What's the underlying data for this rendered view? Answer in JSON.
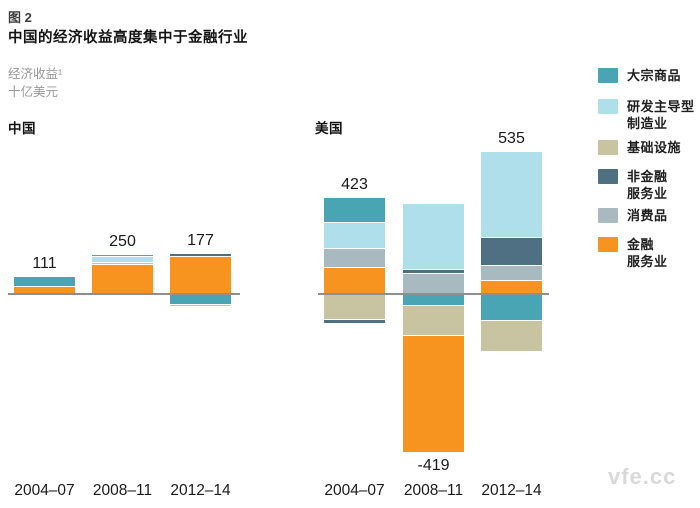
{
  "header": {
    "figure_label": "图 2",
    "title": "中国的经济收益高度集中于金融行业",
    "unit_line1": "经济收益¹",
    "unit_line2": "十亿美元"
  },
  "watermark": "vfe.cc",
  "colors": {
    "commodities": "#49a5b4",
    "rd_manufacturing": "#b0dfec",
    "infrastructure": "#c8c4a2",
    "nonfinancial_services": "#4e7082",
    "consumer_goods": "#a8b9c0",
    "financial_services": "#f79420",
    "axis_line": "#8f8f8f",
    "subtitle_gray": "#9a9a9a"
  },
  "legend": {
    "items": [
      {
        "key": "commodities-swatch",
        "label": "大宗商品",
        "color": "#49a5b4"
      },
      {
        "key": "rd-manufacturing-swatch",
        "label": "研发主导型\n制造业",
        "color": "#b0dfec"
      },
      {
        "key": "infrastructure-swatch",
        "label": "基础设施",
        "color": "#c8c4a2"
      },
      {
        "key": "nonfinancial-services-swatch",
        "label": "非金融\n服务业",
        "color": "#4e7082"
      },
      {
        "key": "consumer-goods-swatch",
        "label": "消费品",
        "color": "#a8b9c0"
      },
      {
        "key": "financial-services-swatch",
        "label": "金融\n服务业",
        "color": "#f79420"
      }
    ]
  },
  "chart_data": {
    "type": "bar",
    "stacked": true,
    "unit": "十亿美元 (USD billion)",
    "categories": [
      "2004–07",
      "2008–11",
      "2012–14"
    ],
    "zero_baseline": true,
    "legend_position": "right",
    "grid": false,
    "panels": [
      {
        "name": "中国",
        "net_totals": [
          111,
          250,
          177
        ],
        "net_labels": [
          "111",
          "250",
          "177"
        ],
        "series": [
          {
            "name": "大宗商品",
            "key": "commodities",
            "color": "#49a5b4",
            "values": [
              62,
              10,
              -65
            ]
          },
          {
            "name": "研发主导型制造业",
            "key": "rd-manufacturing",
            "color": "#b0dfec",
            "values": [
              0,
              42,
              0
            ]
          },
          {
            "name": "基础设施",
            "key": "infrastructure",
            "color": "#c8c4a2",
            "values": [
              0,
              8,
              -13
            ]
          },
          {
            "name": "非金融服务业",
            "key": "nonfinancial-services",
            "color": "#4e7082",
            "values": [
              0,
              0,
              15
            ]
          },
          {
            "name": "消费品",
            "key": "consumer-goods",
            "color": "#a8b9c0",
            "values": [
              0,
              0,
              0
            ]
          },
          {
            "name": "金融服务业",
            "key": "financial-services",
            "color": "#f79420",
            "values": [
              49,
              190,
              240
            ]
          }
        ]
      },
      {
        "name": "美国",
        "net_totals": [
          423,
          -419,
          535
        ],
        "net_labels": [
          "423",
          "-419",
          "535"
        ],
        "series": [
          {
            "name": "大宗商品",
            "key": "commodities",
            "color": "#49a5b4",
            "values": [
              155,
              -70,
              -163
            ]
          },
          {
            "name": "研发主导型制造业",
            "key": "rd-manufacturing",
            "color": "#b0dfec",
            "values": [
              165,
              415,
              535
            ]
          },
          {
            "name": "基础设施",
            "key": "infrastructure",
            "color": "#c8c4a2",
            "values": [
              -155,
              -185,
              -195
            ]
          },
          {
            "name": "非金融服务业",
            "key": "nonfinancial-services",
            "color": "#4e7082",
            "values": [
              -27,
              25,
              175
            ]
          },
          {
            "name": "消费品",
            "key": "consumer-goods",
            "color": "#a8b9c0",
            "values": [
              115,
              130,
              98
            ]
          },
          {
            "name": "金融服务业",
            "key": "financial-services",
            "color": "#f79420",
            "values": [
              170,
              -734,
              85
            ]
          }
        ]
      }
    ]
  }
}
